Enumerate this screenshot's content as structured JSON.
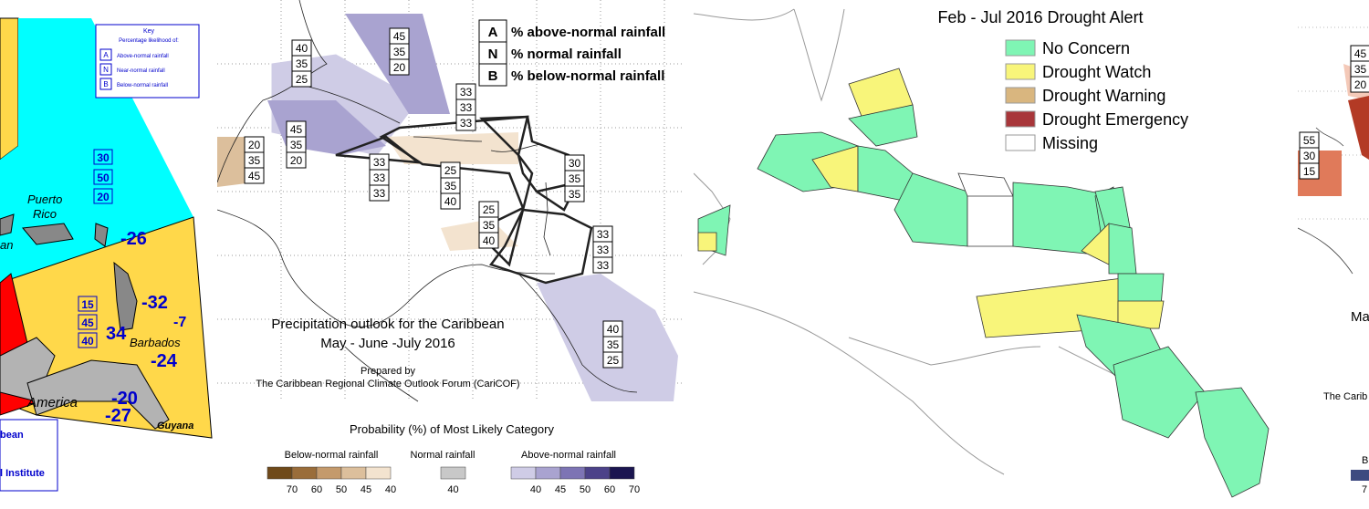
{
  "map1": {
    "key_title": "Key",
    "key_subtitle": "Percentage likelihood of:",
    "key_items": [
      {
        "letter": "A",
        "label": "Above-normal rainfall"
      },
      {
        "letter": "N",
        "label": "Near-normal rainfall"
      },
      {
        "letter": "B",
        "label": "Below-normal rainfall"
      }
    ],
    "zone_box": [
      "30",
      "50",
      "20"
    ],
    "zone_box2": [
      "15",
      "45",
      "40"
    ],
    "place_puerto_rico": "Puerto Rico",
    "place_pr_line1": "Puerto",
    "place_pr_line2": "Rico",
    "place_an": "an",
    "place_barbados": "Barbados",
    "place_america": "America",
    "place_guyana": "Guyana",
    "place_bean": "bean",
    "place_institute": "l Institute",
    "anom_26": "-26",
    "anom_32": "-32",
    "anom_7": "-7",
    "anom_34": "34",
    "anom_24": "-24",
    "anom_20": "-20",
    "anom_27": "-27",
    "colors": {
      "cyan": "#00ffff",
      "yellow": "#ffd84a",
      "red": "#ff0000",
      "blue": "#0000cc"
    }
  },
  "map2": {
    "legend": [
      {
        "letter": "A",
        "label": "% above-normal rainfall"
      },
      {
        "letter": "N",
        "label": "% normal rainfall"
      },
      {
        "letter": "B",
        "label": "% below-normal rainfall"
      }
    ],
    "boxes": [
      [
        "40",
        "35",
        "25"
      ],
      [
        "45",
        "35",
        "20"
      ],
      [
        "33",
        "33",
        "33"
      ],
      [
        "45",
        "35",
        "20"
      ],
      [
        "20",
        "35",
        "45"
      ],
      [
        "33",
        "33",
        "33"
      ],
      [
        "25",
        "35",
        "40"
      ],
      [
        "30",
        "35",
        "35"
      ],
      [
        "25",
        "35",
        "40"
      ],
      [
        "33",
        "33",
        "33"
      ],
      [
        "40",
        "35",
        "25"
      ]
    ],
    "title_line1": "Precipitation outlook for the Caribbean",
    "title_line2": "May - June -July 2016",
    "prepared_by": "Prepared by",
    "forum": "The Caribbean Regional Climate Outlook Forum (CariCOF)",
    "prob_title": "Probability (%) of Most Likely Category",
    "bar_below": {
      "label": "Below-normal rainfall",
      "ticks": [
        "70",
        "60",
        "50",
        "45",
        "40"
      ],
      "colors": [
        "#6f4a1a",
        "#9a6d3a",
        "#c49a6c",
        "#dcbf9c",
        "#f3e3cf"
      ]
    },
    "bar_normal": {
      "label": "Normal rainfall",
      "ticks": [
        "40"
      ],
      "colors": [
        "#c8c8c8"
      ]
    },
    "bar_above": {
      "label": "Above-normal rainfall",
      "ticks": [
        "40",
        "45",
        "50",
        "60",
        "70"
      ],
      "colors": [
        "#cfcce6",
        "#a9a3d0",
        "#7d74b4",
        "#4c4289",
        "#1b1550"
      ]
    }
  },
  "map3": {
    "title": "Feb - Jul 2016 Drought Alert",
    "legend": [
      {
        "label": "No Concern",
        "color": "#7ff5b4"
      },
      {
        "label": "Drought Watch",
        "color": "#f8f57a"
      },
      {
        "label": "Drought Warning",
        "color": "#d9b67f"
      },
      {
        "label": "Drought Emergency",
        "color": "#a8363a"
      },
      {
        "label": "Missing",
        "color": "#ffffff"
      }
    ]
  },
  "map4": {
    "box_top": [
      "45",
      "35",
      "20"
    ],
    "box_left": [
      "55",
      "30",
      "15"
    ],
    "ma": "Ma",
    "the_carib": "The Carib",
    "b": "B",
    "seven": "7"
  }
}
